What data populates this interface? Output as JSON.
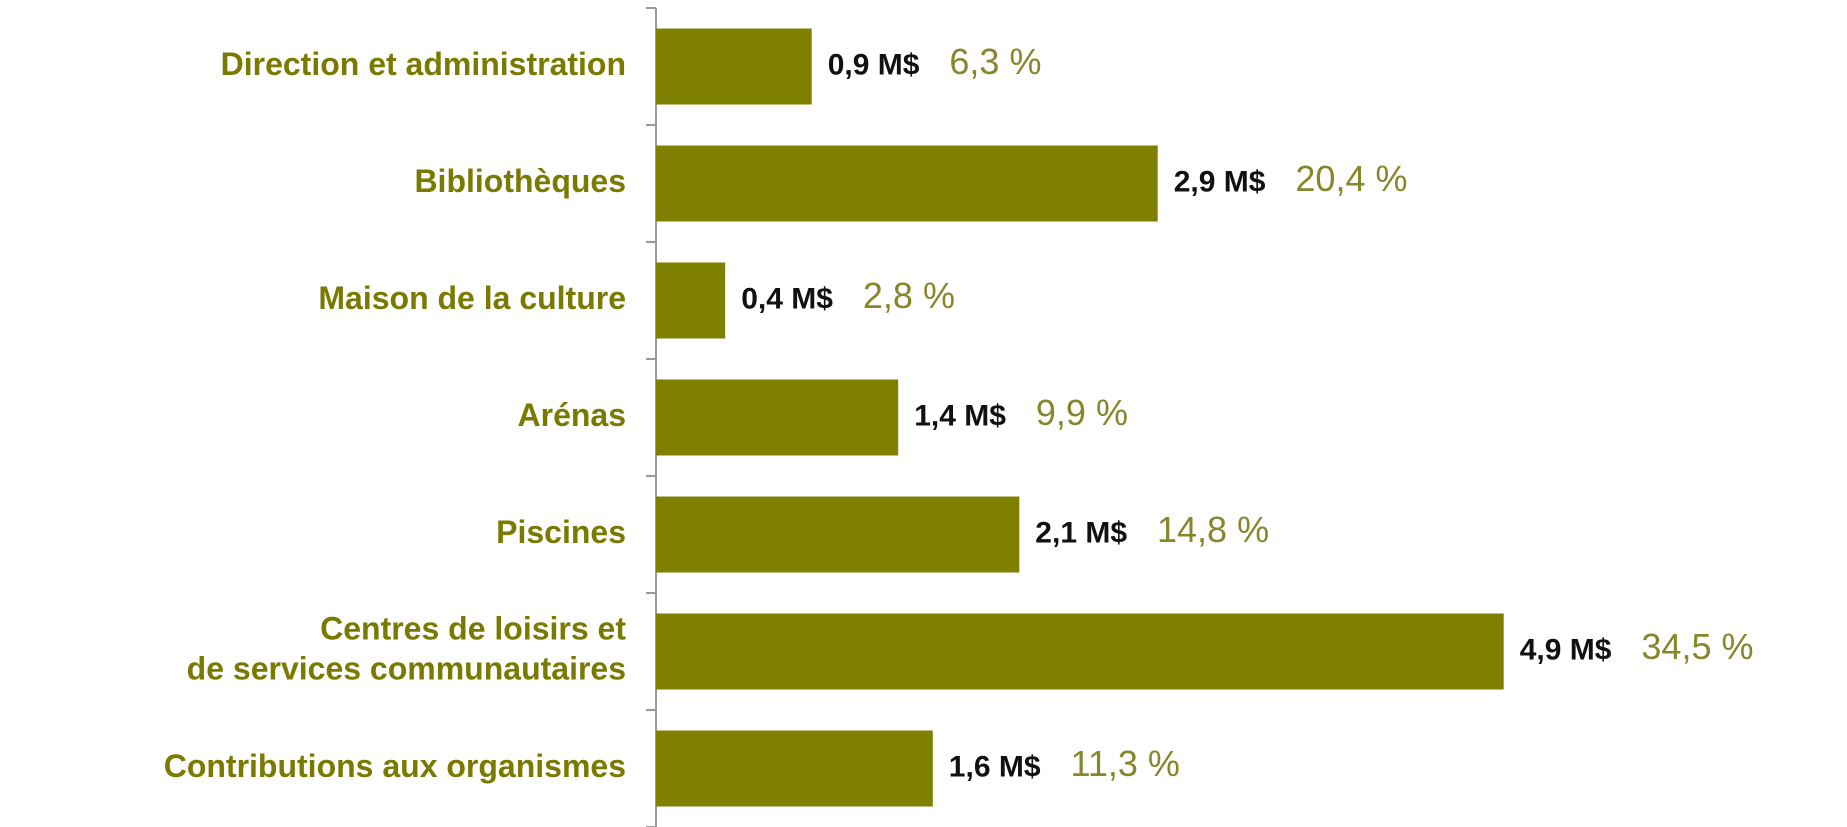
{
  "chart_data": {
    "type": "bar",
    "orientation": "horizontal",
    "categories": [
      "Direction et administration",
      "Bibliothèques",
      "Maison de la culture",
      "Arénas",
      "Piscines",
      [
        "Centres de loisirs et",
        "de services communautaires"
      ],
      "Contributions aux organismes"
    ],
    "values": [
      0.9,
      2.9,
      0.4,
      1.4,
      2.1,
      4.9,
      1.6
    ],
    "value_labels": [
      "0,9 M$",
      "2,9 M$",
      "0,4 M$",
      "1,4 M$",
      "2,1 M$",
      "4,9 M$",
      "1,6 M$"
    ],
    "percentages": [
      6.3,
      20.4,
      2.8,
      9.9,
      14.8,
      34.5,
      11.3
    ],
    "percentage_labels": [
      "6,3 %",
      "20,4 %",
      "2,8 %",
      "9,9 %",
      "14,8 %",
      "34,5 %",
      "11,3 %"
    ],
    "color": "#7f7f00"
  }
}
